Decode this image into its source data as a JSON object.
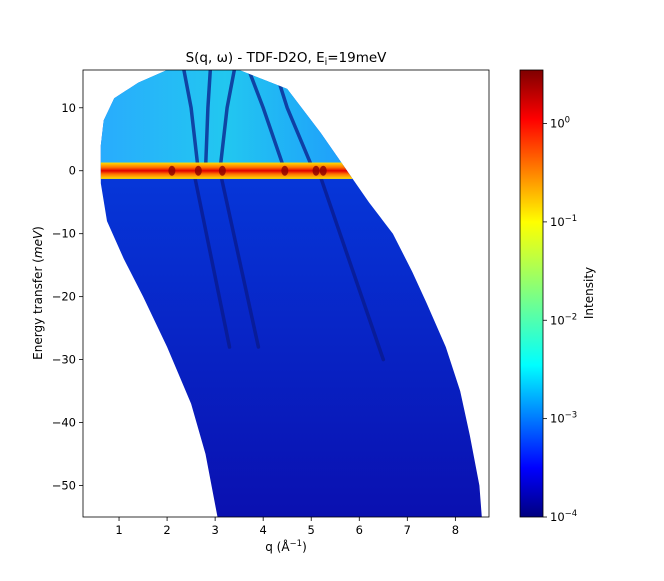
{
  "chart_data": {
    "type": "heatmap",
    "title": "S(q, ω) - TDF-D2O, E",
    "title_sub": "i",
    "title_tail": "=19meV",
    "xlabel": "q (Å",
    "xlabel_sup": "−1",
    "xlabel_tail": ")",
    "ylabel_pre": "Energy transfer (",
    "ylabel_it": "meV",
    "ylabel_post": ")",
    "xlim": [
      0.25,
      8.7
    ],
    "ylim": [
      -55,
      16
    ],
    "x_ticks": [
      1,
      2,
      3,
      4,
      5,
      6,
      7,
      8
    ],
    "y_ticks": [
      10,
      0,
      -10,
      -20,
      -30,
      -40,
      -50
    ],
    "x_tick_labels": [
      "1",
      "2",
      "3",
      "4",
      "5",
      "6",
      "7",
      "8"
    ],
    "y_tick_labels": [
      "10",
      "0",
      "−10",
      "−20",
      "−30",
      "−40",
      "−50"
    ],
    "colorbar": {
      "label": "Intensity",
      "scale": "log",
      "range": [
        0.0001,
        3.5
      ],
      "ticks": [
        {
          "value": 1,
          "base": "10",
          "exp": "0"
        },
        {
          "value": 0.1,
          "base": "10",
          "exp": "−1"
        },
        {
          "value": 0.01,
          "base": "10",
          "exp": "−2"
        },
        {
          "value": 0.001,
          "base": "10",
          "exp": "−3"
        },
        {
          "value": 0.0001,
          "base": "10",
          "exp": "−4"
        }
      ],
      "colormap": "jet"
    },
    "coverage_boundary": {
      "left_edge": [
        [
          0.62,
          4
        ],
        [
          0.68,
          8
        ],
        [
          0.9,
          11.5
        ],
        [
          1.4,
          14
        ],
        [
          2,
          16
        ],
        [
          2.55,
          16
        ],
        [
          0.62,
          -2
        ],
        [
          0.75,
          -8
        ],
        [
          1.1,
          -14
        ],
        [
          1.5,
          -20
        ],
        [
          2.0,
          -28
        ],
        [
          2.5,
          -37
        ],
        [
          2.8,
          -45
        ],
        [
          3.05,
          -55
        ]
      ],
      "right_edge": [
        [
          3.5,
          16
        ],
        [
          4.5,
          13
        ],
        [
          5.2,
          6
        ],
        [
          5.7,
          0.5
        ],
        [
          6.2,
          -5
        ],
        [
          6.7,
          -10
        ],
        [
          7.1,
          -16
        ],
        [
          7.4,
          -21
        ],
        [
          7.8,
          -28
        ],
        [
          8.1,
          -35
        ],
        [
          8.3,
          -42
        ],
        [
          8.5,
          -50
        ],
        [
          8.55,
          -55
        ]
      ]
    },
    "features": {
      "elastic_line": {
        "energy": 0,
        "intensity": 2.0
      },
      "quasielastic_intensity_above_zero": 0.004,
      "background_intensity": 0.0002,
      "dispersive_branches": [
        {
          "points": [
            [
              2.65,
              0
            ],
            [
              2.5,
              10
            ],
            [
              2.35,
              16
            ]
          ]
        },
        {
          "points": [
            [
              2.8,
              0
            ],
            [
              2.85,
              10
            ],
            [
              2.9,
              16
            ]
          ]
        },
        {
          "points": [
            [
              3.1,
              0
            ],
            [
              3.25,
              10
            ],
            [
              3.4,
              16
            ]
          ]
        },
        {
          "points": [
            [
              4.45,
              0
            ],
            [
              4.0,
              10
            ],
            [
              3.7,
              16
            ]
          ]
        },
        {
          "points": [
            [
              5.05,
              0
            ],
            [
              4.5,
              10
            ],
            [
              4.25,
              16
            ]
          ]
        },
        {
          "points": [
            [
              2.55,
              0
            ],
            [
              3.3,
              -28
            ]
          ]
        },
        {
          "points": [
            [
              3.1,
              0
            ],
            [
              3.9,
              -28
            ]
          ]
        },
        {
          "points": [
            [
              5.15,
              0
            ],
            [
              6.5,
              -30
            ]
          ]
        }
      ],
      "elastic_hotspots_q": [
        2.1,
        2.65,
        3.15,
        4.45,
        5.1,
        5.25
      ]
    }
  }
}
